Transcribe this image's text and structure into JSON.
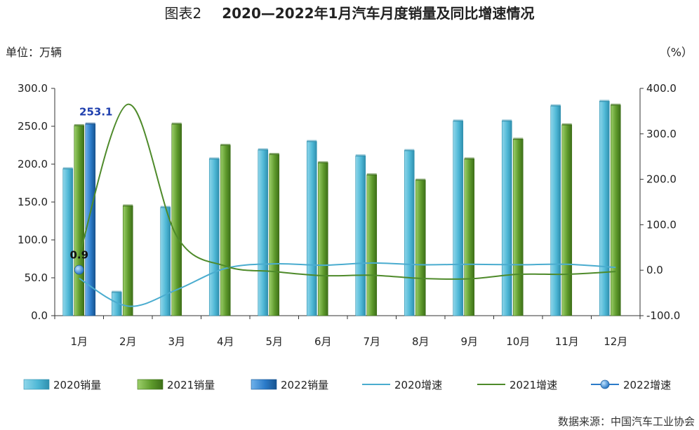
{
  "chart_data": {
    "type": "bar",
    "title_prefix": "图表2",
    "title": "2020—2022年1月汽车月度销量及同比增速情况",
    "left_unit": "单位：万辆",
    "right_unit": "（%）",
    "source": "数据来源：中国汽车工业协会",
    "categories": [
      "1月",
      "2月",
      "3月",
      "4月",
      "5月",
      "6月",
      "7月",
      "8月",
      "9月",
      "10月",
      "11月",
      "12月"
    ],
    "ylim_left": [
      0,
      300
    ],
    "ylim_right": [
      -100,
      400
    ],
    "left_ticks": [
      "0.0",
      "50.0",
      "100.0",
      "150.0",
      "200.0",
      "250.0",
      "300.0"
    ],
    "right_ticks": [
      "-100.0",
      "0.0",
      "100.0",
      "200.0",
      "300.0",
      "400.0"
    ],
    "bar_series": [
      {
        "name": "2020销量",
        "color": "#4fb8d6",
        "values": [
          194,
          31,
          143,
          207,
          219,
          230,
          211,
          218,
          257,
          257,
          277,
          283
        ]
      },
      {
        "name": "2021销量",
        "color": "#5e9a2c",
        "values": [
          251,
          145,
          253,
          225,
          213,
          202,
          186,
          179,
          207,
          233,
          252,
          278
        ]
      },
      {
        "name": "2022销量",
        "color": "#2b7bc9",
        "values": [
          253.1,
          null,
          null,
          null,
          null,
          null,
          null,
          null,
          null,
          null,
          null,
          null
        ]
      }
    ],
    "line_series": [
      {
        "name": "2020增速",
        "color": "#4aaccf",
        "values": [
          -18,
          -79,
          -43,
          4,
          14,
          11,
          16,
          12,
          13,
          12,
          13,
          6
        ]
      },
      {
        "name": "2021增速",
        "color": "#4e8a2a",
        "values": [
          30,
          365,
          75,
          9,
          -3,
          -12,
          -11,
          -18,
          -19,
          -9,
          -9,
          -3
        ]
      },
      {
        "name": "2022增速",
        "color": "#2b7bc9",
        "values": [
          0.9,
          null,
          null,
          null,
          null,
          null,
          null,
          null,
          null,
          null,
          null,
          null
        ]
      }
    ],
    "data_labels": {
      "bar_2022_jan": "253.1",
      "point_2022_jan": "0.9"
    },
    "legend_position": "bottom",
    "grid": false
  }
}
